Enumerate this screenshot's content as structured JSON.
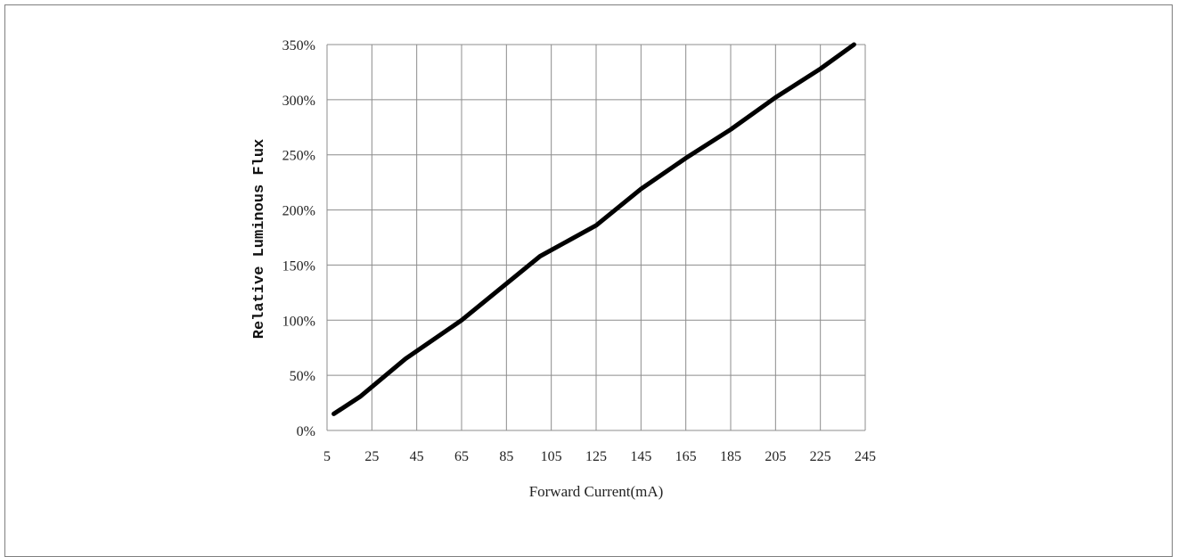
{
  "chart_data": {
    "type": "line",
    "title": "",
    "xlabel": "Forward Current(mA)",
    "ylabel": "Relative Luminous Flux",
    "xlim": [
      5,
      245
    ],
    "ylim": [
      0,
      350
    ],
    "x_ticks": [
      5,
      25,
      45,
      65,
      85,
      105,
      125,
      145,
      165,
      185,
      205,
      225,
      245
    ],
    "y_ticks": [
      0,
      50,
      100,
      150,
      200,
      250,
      300,
      350
    ],
    "y_tick_labels": [
      "0%",
      "50%",
      "100%",
      "150%",
      "200%",
      "250%",
      "300%",
      "350%"
    ],
    "grid": true,
    "legend": "none",
    "series": [
      {
        "color": "#000000",
        "x": [
          8,
          20,
          40,
          65,
          100,
          125,
          145,
          165,
          185,
          205,
          225,
          240
        ],
        "y": [
          15,
          31,
          65,
          100,
          158,
          186,
          219,
          247,
          273,
          302,
          328,
          350
        ]
      }
    ]
  }
}
